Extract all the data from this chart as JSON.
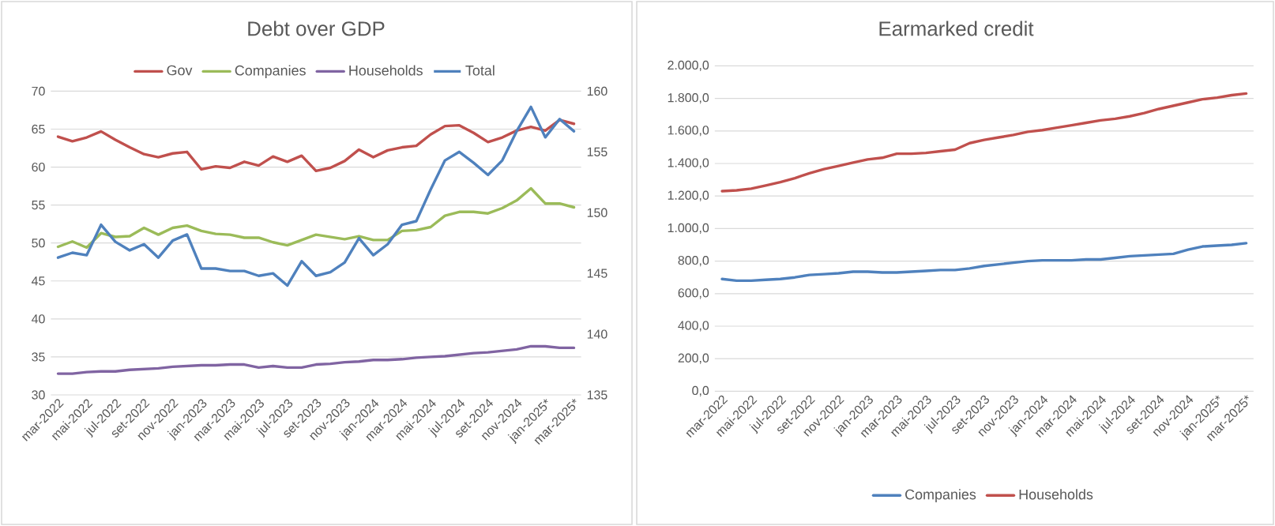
{
  "chart_data": [
    {
      "type": "line",
      "title": "Debt over GDP",
      "categories": [
        "mar-2022",
        null,
        "mai-2022",
        null,
        "jul-2022",
        null,
        "set-2022",
        null,
        "nov-2022",
        null,
        "jan-2023",
        null,
        "mar-2023",
        null,
        "mai-2023",
        null,
        "jul-2023",
        null,
        "set-2023",
        null,
        "nov-2023",
        null,
        "jan-2024",
        null,
        "mar-2024",
        null,
        "mai-2024",
        null,
        "jul-2024",
        null,
        "set-2024",
        null,
        "nov-2024",
        null,
        "jan-2025*",
        null,
        "mar-2025*"
      ],
      "series": [
        {
          "name": "Gov",
          "color": "#c0504d",
          "values": [
            64.0,
            63.4,
            63.9,
            64.7,
            63.6,
            62.6,
            61.7,
            61.3,
            61.8,
            62.0,
            59.7,
            60.1,
            59.9,
            60.7,
            60.2,
            61.4,
            60.7,
            61.5,
            59.5,
            59.9,
            60.8,
            62.3,
            61.3,
            62.2,
            62.6,
            62.8,
            64.3,
            65.4,
            65.5,
            64.5,
            63.3,
            63.9,
            64.8,
            65.3,
            64.8,
            66.2,
            65.7
          ]
        },
        {
          "name": "Companies",
          "color": "#9bbb59",
          "values": [
            49.5,
            50.2,
            49.4,
            51.3,
            50.8,
            50.9,
            52.0,
            51.1,
            52.0,
            52.3,
            51.6,
            51.2,
            51.1,
            50.7,
            50.7,
            50.1,
            49.7,
            50.4,
            51.1,
            50.8,
            50.5,
            50.9,
            50.4,
            50.4,
            51.6,
            51.7,
            52.1,
            53.6,
            54.1,
            54.1,
            53.9,
            54.6,
            55.6,
            57.2,
            55.2,
            55.2,
            54.7
          ]
        },
        {
          "name": "Households",
          "color": "#8064a2",
          "values": [
            32.8,
            32.8,
            33.0,
            33.1,
            33.1,
            33.3,
            33.4,
            33.5,
            33.7,
            33.8,
            33.9,
            33.9,
            34.0,
            34.0,
            33.6,
            33.8,
            33.6,
            33.6,
            34.0,
            34.1,
            34.3,
            34.4,
            34.6,
            34.6,
            34.7,
            34.9,
            35.0,
            35.1,
            35.3,
            35.5,
            35.6,
            35.8,
            36.0,
            36.4,
            36.4,
            36.2,
            36.2
          ]
        },
        {
          "name": "Total",
          "color": "#4f81bd",
          "axis": "y2",
          "values": [
            146.3,
            146.7,
            146.5,
            149.0,
            147.6,
            146.9,
            147.4,
            146.3,
            147.7,
            148.2,
            145.4,
            145.4,
            145.2,
            145.2,
            144.8,
            145.0,
            144.0,
            146.0,
            144.8,
            145.1,
            145.9,
            147.9,
            146.5,
            147.4,
            149.0,
            149.3,
            151.9,
            154.3,
            155.0,
            154.1,
            153.1,
            154.3,
            156.7,
            158.7,
            156.2,
            157.7,
            156.7
          ]
        }
      ],
      "ylim": [
        30,
        70
      ],
      "yticks": [
        30,
        35,
        40,
        45,
        50,
        55,
        60,
        65,
        70
      ],
      "y2lim": [
        135,
        160
      ],
      "y2ticks": [
        135,
        140,
        145,
        150,
        155,
        160
      ],
      "grid": "y",
      "legend": "top",
      "line_style": "solid"
    },
    {
      "type": "line",
      "title": "Earmarked credit",
      "categories": [
        "mar-2022",
        null,
        "mai-2022",
        null,
        "jul-2022",
        null,
        "set-2022",
        null,
        "nov-2022",
        null,
        "jan-2023",
        null,
        "mar-2023",
        null,
        "mai-2023",
        null,
        "jul-2023",
        null,
        "set-2023",
        null,
        "nov-2023",
        null,
        "jan-2024",
        null,
        "mar-2024",
        null,
        "mai-2024",
        null,
        "jul-2024",
        null,
        "set-2024",
        null,
        "nov-2024",
        null,
        "jan-2025*",
        null,
        "mar-2025*"
      ],
      "series": [
        {
          "name": "Companies",
          "color": "#4f81bd",
          "values": [
            690,
            680,
            680,
            685,
            690,
            700,
            715,
            720,
            725,
            735,
            735,
            730,
            730,
            735,
            740,
            745,
            745,
            755,
            770,
            780,
            790,
            800,
            805,
            805,
            805,
            810,
            810,
            820,
            830,
            835,
            840,
            845,
            870,
            890,
            895,
            900,
            910
          ]
        },
        {
          "name": "Households",
          "color": "#c0504d",
          "values": [
            1230,
            1235,
            1245,
            1265,
            1285,
            1310,
            1340,
            1365,
            1385,
            1405,
            1425,
            1435,
            1460,
            1460,
            1465,
            1475,
            1485,
            1525,
            1545,
            1560,
            1575,
            1595,
            1605,
            1620,
            1635,
            1650,
            1665,
            1675,
            1690,
            1710,
            1735,
            1755,
            1775,
            1795,
            1805,
            1820,
            1830
          ]
        }
      ],
      "ylim": [
        0,
        2000
      ],
      "yticks": [
        {
          "value": 0,
          "label": "0,0"
        },
        {
          "value": 200,
          "label": "200,0"
        },
        {
          "value": 400,
          "label": "400,0"
        },
        {
          "value": 600,
          "label": "600,0"
        },
        {
          "value": 800,
          "label": "800,0"
        },
        {
          "value": 1000,
          "label": "1.000,0"
        },
        {
          "value": 1200,
          "label": "1.200,0"
        },
        {
          "value": 1400,
          "label": "1.400,0"
        },
        {
          "value": 1600,
          "label": "1.600,0"
        },
        {
          "value": 1800,
          "label": "1.800,0"
        },
        {
          "value": 2000,
          "label": "2.000,0"
        }
      ],
      "grid": "y",
      "legend": "bottom",
      "line_style": "solid"
    }
  ]
}
